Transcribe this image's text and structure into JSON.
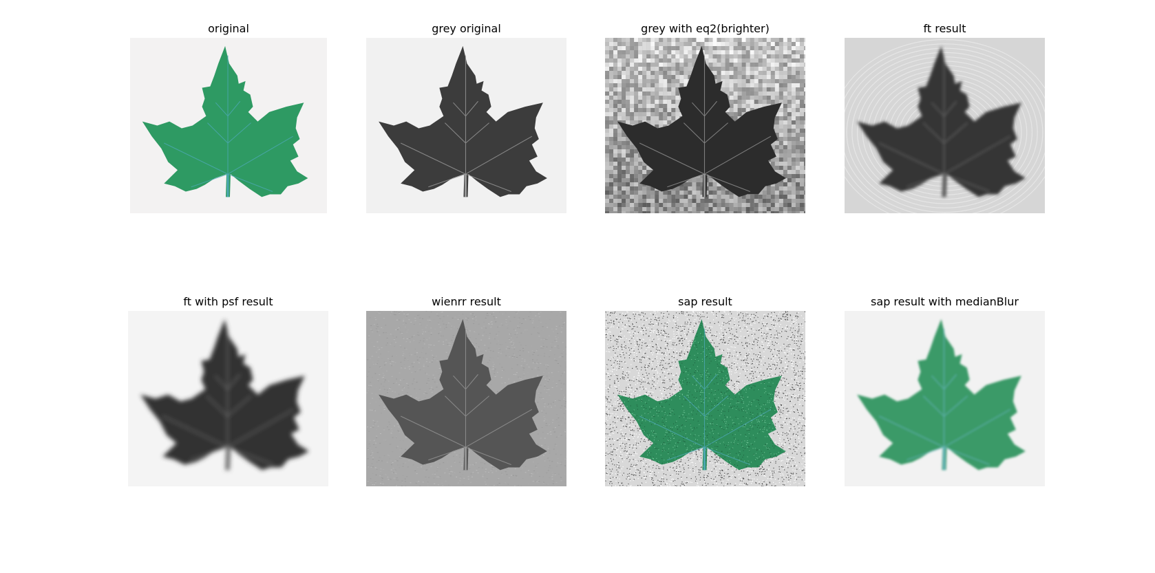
{
  "figure": {
    "panels": [
      {
        "title": "original",
        "variant": "color",
        "leaf_color": "#2e9a63",
        "background": "#f3f2f2",
        "stem_color": "#4fa9b8"
      },
      {
        "title": "grey original",
        "variant": "grey",
        "leaf_color": "#3c3c3c",
        "background": "#f1f1f1",
        "stem_color": "#a0a0a0"
      },
      {
        "title": "grey with eq2(brighter)",
        "variant": "equalized",
        "leaf_color": "#2c2c2c",
        "background": "#bdbdbd",
        "stem_color": "#9a9a9a"
      },
      {
        "title": "ft result",
        "variant": "ft",
        "leaf_color": "#353535",
        "background": "#d6d6d6",
        "stem_color": "#777777"
      },
      {
        "title": "ft with psf result",
        "variant": "psf",
        "leaf_color": "#333333",
        "background": "#f4f4f4",
        "stem_color": "#888888"
      },
      {
        "title": "wienrr result",
        "variant": "wiener",
        "leaf_color": "#555555",
        "background": "#a8a8a8",
        "stem_color": "#999999"
      },
      {
        "title": "sap result",
        "variant": "sap",
        "leaf_color": "#2e8d5c",
        "background": "#d8d8d8",
        "stem_color": "#4fa9b8"
      },
      {
        "title": "sap result with medianBlur",
        "variant": "median",
        "leaf_color": "#3a9a68",
        "background": "#f2f2f2",
        "stem_color": "#6cbac6"
      }
    ]
  }
}
